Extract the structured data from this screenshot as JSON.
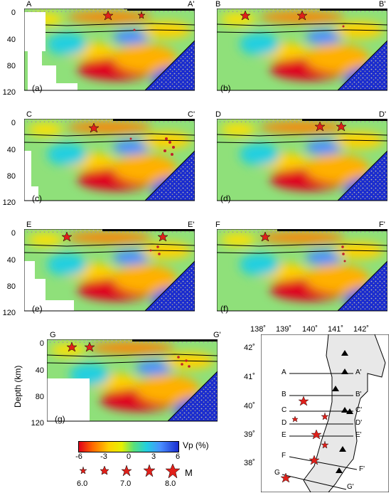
{
  "panels": [
    {
      "left_label": "A",
      "right_label": "A'",
      "panel_label": "(a)"
    },
    {
      "left_label": "B",
      "right_label": "B'",
      "panel_label": "(b)"
    },
    {
      "left_label": "C",
      "right_label": "C'",
      "panel_label": "(c)"
    },
    {
      "left_label": "D",
      "right_label": "D'",
      "panel_label": "(d)"
    },
    {
      "left_label": "E",
      "right_label": "E'",
      "panel_label": "(e)"
    },
    {
      "left_label": "F",
      "right_label": "F'",
      "panel_label": "(f)"
    },
    {
      "left_label": "G",
      "right_label": "G'",
      "panel_label": "(g)"
    }
  ],
  "depth_ticks": [
    "0",
    "40",
    "80",
    "120"
  ],
  "ylabel": "Depth (km)",
  "colorbar": {
    "label": "Vp (%)",
    "ticks": [
      "-6",
      "-3",
      "0",
      "3",
      "6"
    ],
    "colors": [
      "#e0001a",
      "#ff6a00",
      "#ffd100",
      "#e6f000",
      "#59e07a",
      "#22cfe0",
      "#4a8fff",
      "#1a2ccf"
    ]
  },
  "magnitude": {
    "label": "M",
    "values": [
      "6.0",
      "7.0",
      "8.0"
    ]
  },
  "map": {
    "lon_ticks": [
      "138˚",
      "139˚",
      "140˚",
      "141˚",
      "142˚"
    ],
    "lat_ticks": [
      "42˚",
      "41˚",
      "40˚",
      "39˚",
      "38˚"
    ],
    "profiles": [
      {
        "left": "A",
        "right": "A'"
      },
      {
        "left": "B",
        "right": "B'"
      },
      {
        "left": "C",
        "right": "C'"
      },
      {
        "left": "D",
        "right": "D'"
      },
      {
        "left": "E",
        "right": "E'"
      },
      {
        "left": "F",
        "right": "F'"
      },
      {
        "left": "G",
        "right": "G'"
      }
    ]
  },
  "colors": {
    "star": "#e0201a",
    "land": "#e8e8e8",
    "volcano": "#000000"
  }
}
